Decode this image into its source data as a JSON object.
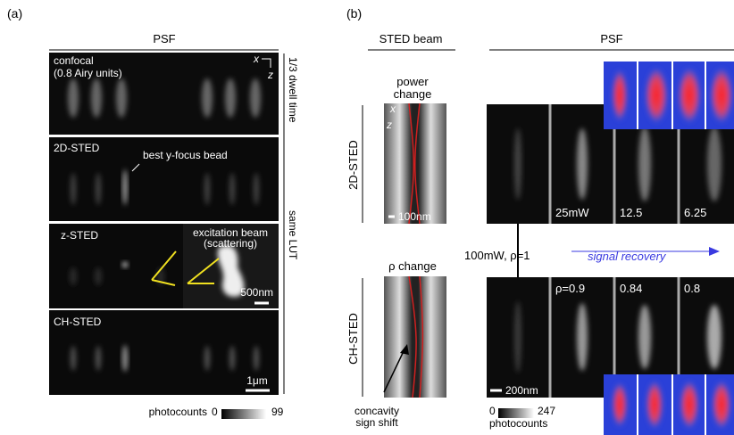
{
  "panel_a": {
    "label": "(a)",
    "title": "PSF",
    "rows": [
      {
        "label": "confocal",
        "sublabel": "(0.8 Airy units)",
        "axis_x": "x",
        "axis_z": "z"
      },
      {
        "label": "2D-STED",
        "annotation": "best y-focus bead"
      },
      {
        "label": "z-STED",
        "inset_title": "excitation beam",
        "inset_subtitle": "(scattering)",
        "scale_bar": "500nm"
      },
      {
        "label": "CH-STED",
        "scale_bar": "1μm"
      }
    ],
    "side_labels": [
      "1/3 dwell time",
      "same LUT"
    ],
    "colorbar": {
      "label": "photocounts",
      "min": "0",
      "max": "99"
    }
  },
  "panel_b": {
    "label": "(b)",
    "sted_title": "STED beam",
    "psf_title": "PSF",
    "row_labels": [
      "2D-STED",
      "CH-STED"
    ],
    "top_sted_caption": [
      "power",
      "change"
    ],
    "bottom_sted_caption": "ρ change",
    "axis_x": "x",
    "axis_z": "z",
    "sted_scale_bar": "100nm",
    "top_psf_labels": [
      "25mW",
      "12.5",
      "6.25"
    ],
    "middle_label": "100mW, ρ=1",
    "recovery_label": "signal recovery",
    "bottom_psf_labels": [
      "ρ=0.9",
      "0.84",
      "0.8"
    ],
    "psf_scale_bar": "200nm",
    "annotation": [
      "concavity",
      "sign shift"
    ],
    "colorbar": {
      "label": "photocounts",
      "min": "0",
      "max": "247"
    }
  }
}
